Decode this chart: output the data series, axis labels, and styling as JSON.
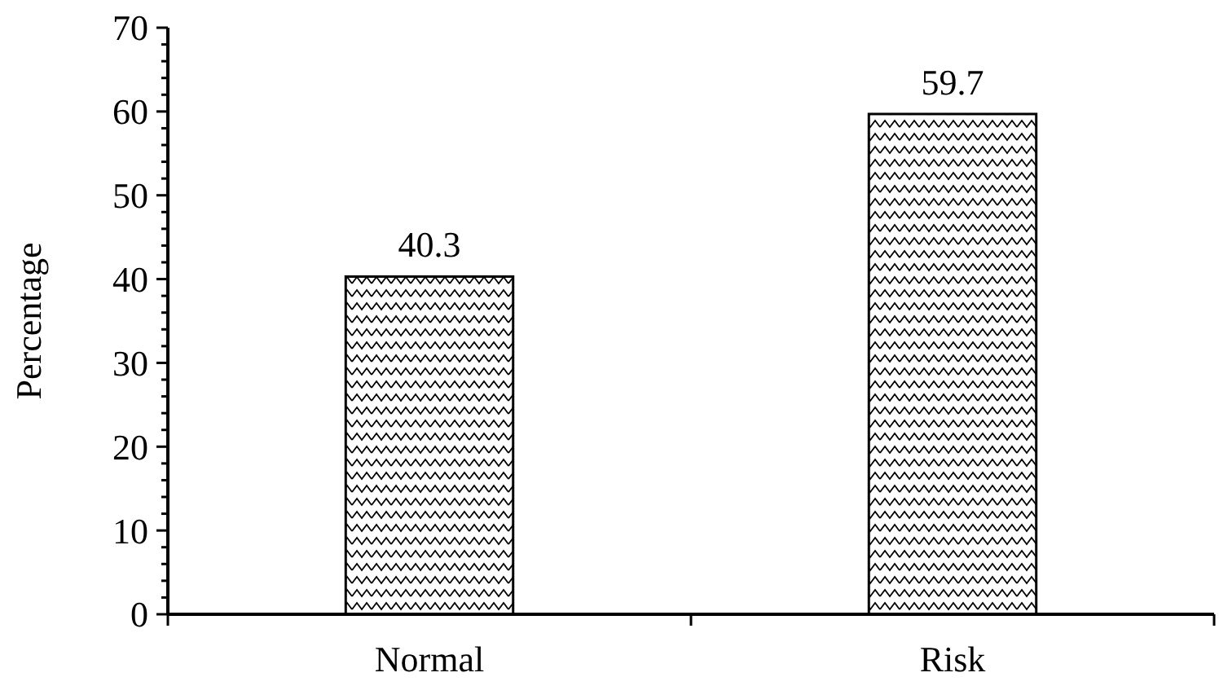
{
  "chart_data": {
    "type": "bar",
    "ylabel": "Percentage",
    "categories": [
      "Normal",
      "Risk"
    ],
    "values": [
      40.3,
      59.7
    ],
    "color": "#000000",
    "data_labels": true,
    "ylim": [
      0,
      70
    ],
    "yticks": [
      0,
      {
        "value": 2,
        "label": null
      },
      {
        "value": 4,
        "label": null
      },
      {
        "value": 6,
        "label": null
      },
      {
        "value": 8,
        "label": null
      },
      10,
      {
        "value": 12,
        "label": null
      },
      {
        "value": 14,
        "label": null
      },
      {
        "value": 16,
        "label": null
      },
      {
        "value": 18,
        "label": null
      },
      20,
      {
        "value": 22,
        "label": null
      },
      {
        "value": 24,
        "label": null
      },
      {
        "value": 26,
        "label": null
      },
      {
        "value": 28,
        "label": null
      },
      30,
      {
        "value": 32,
        "label": null
      },
      {
        "value": 34,
        "label": null
      },
      {
        "value": 36,
        "label": null
      },
      {
        "value": 38,
        "label": null
      },
      40,
      {
        "value": 42,
        "label": null
      },
      {
        "value": 44,
        "label": null
      },
      {
        "value": 46,
        "label": null
      },
      {
        "value": 48,
        "label": null
      },
      50,
      {
        "value": 52,
        "label": null
      },
      {
        "value": 54,
        "label": null
      },
      {
        "value": 56,
        "label": null
      },
      {
        "value": 58,
        "label": null
      },
      60,
      {
        "value": 62,
        "label": null
      },
      {
        "value": 64,
        "label": null
      },
      {
        "value": 66,
        "label": null
      },
      {
        "value": 68,
        "label": null
      },
      70
    ],
    "grid": false
  }
}
